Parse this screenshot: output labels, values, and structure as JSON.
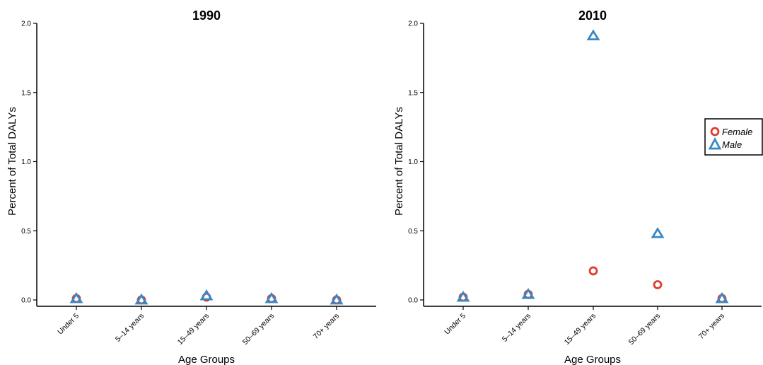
{
  "chart_data": [
    {
      "type": "scatter",
      "title": "1990",
      "xlabel": "Age Groups",
      "ylabel": "Percent of Total DALYs",
      "categories": [
        "Under 5",
        "5–14 years",
        "15–49 years",
        "50–69 years",
        "70+ years"
      ],
      "y_ticks": [
        "0.0",
        "0.5",
        "1.0",
        "1.5",
        "2.0"
      ],
      "ylim": [
        0,
        2
      ],
      "grid": false,
      "series": [
        {
          "name": "Female",
          "marker": "circle",
          "color": "#E03C31",
          "values": [
            0.01,
            0.0,
            0.02,
            0.01,
            0.0
          ]
        },
        {
          "name": "Male",
          "marker": "triangle",
          "color": "#3A88C4",
          "values": [
            0.01,
            0.0,
            0.03,
            0.01,
            0.0
          ]
        }
      ]
    },
    {
      "type": "scatter",
      "title": "2010",
      "xlabel": "Age Groups",
      "ylabel": "Percent of Total DALYs",
      "categories": [
        "Under 5",
        "5–14 years",
        "15–49 years",
        "50–69 years",
        "70+ years"
      ],
      "y_ticks": [
        "0.0",
        "0.5",
        "1.0",
        "1.5",
        "2.0"
      ],
      "ylim": [
        0,
        2
      ],
      "grid": false,
      "legend": "right",
      "series": [
        {
          "name": "Female",
          "marker": "circle",
          "color": "#E03C31",
          "values": [
            0.02,
            0.04,
            0.21,
            0.11,
            0.01
          ]
        },
        {
          "name": "Male",
          "marker": "triangle",
          "color": "#3A88C4",
          "values": [
            0.02,
            0.04,
            1.91,
            0.48,
            0.01
          ]
        }
      ]
    }
  ],
  "legend": {
    "items": [
      {
        "label": "Female",
        "marker": "circle",
        "color": "#E03C31"
      },
      {
        "label": "Male",
        "marker": "triangle",
        "color": "#3A88C4"
      }
    ]
  }
}
